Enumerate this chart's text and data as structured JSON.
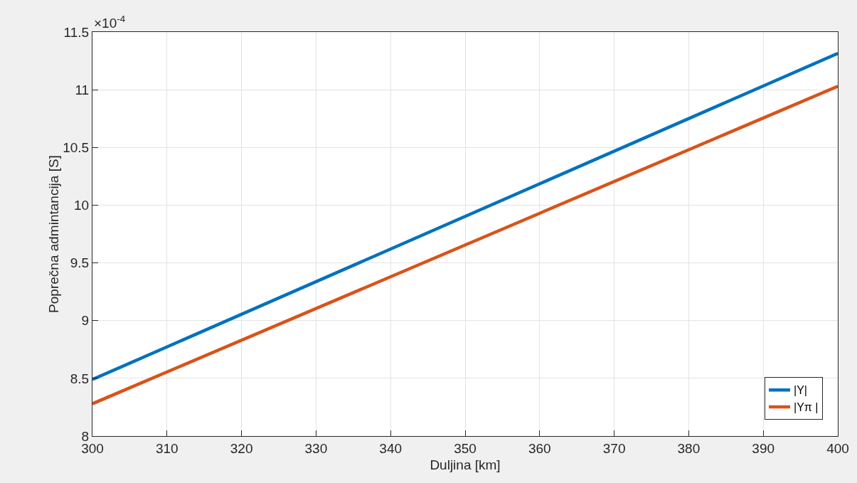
{
  "chart_data": {
    "type": "line",
    "xlabel": "Duljina [km]",
    "ylabel": "Poprečna admintancija [S]",
    "annotations": [
      "×10$^{-4}$"
    ],
    "x": [
      300,
      400
    ],
    "series": [
      {
        "name": "|Y|",
        "color": "#0072bd",
        "values": [
          8.49,
          11.315
        ]
      },
      {
        "name": "|Yπ |",
        "color": "#d95319",
        "values": [
          8.28,
          11.03
        ]
      }
    ],
    "xlim": [
      300,
      400
    ],
    "xticks": [
      300,
      310,
      320,
      330,
      340,
      350,
      360,
      370,
      380,
      390,
      400
    ],
    "ylim": [
      8,
      11.5
    ],
    "yticks": [
      8,
      8.5,
      9,
      9.5,
      10,
      10.5,
      11,
      11.5
    ],
    "grid": true,
    "legend": "bottom right",
    "line_style": "solid",
    "marker": "none"
  }
}
